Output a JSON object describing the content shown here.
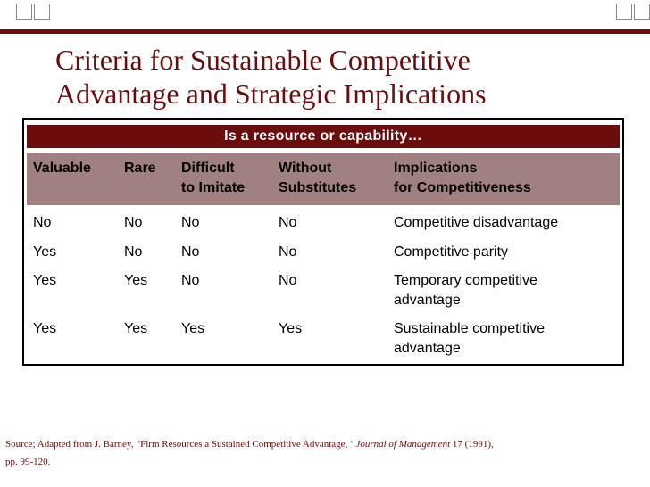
{
  "title": {
    "line1": "Criteria for Sustainable Competitive",
    "line2": "Advantage and Strategic Implications"
  },
  "table": {
    "banner": "Is a resource or capability…",
    "headers": {
      "valuable": "Valuable",
      "rare": "Rare",
      "difficult": "Difficult\nto Imitate",
      "without": "Without\nSubstitutes",
      "implications": "Implications\nfor Competitiveness"
    },
    "rows": [
      {
        "valuable": "No",
        "rare": "No",
        "difficult": "No",
        "without": "No",
        "implications": "Competitive disadvantage"
      },
      {
        "valuable": "Yes",
        "rare": "No",
        "difficult": "No",
        "without": "No",
        "implications": "Competitive parity"
      },
      {
        "valuable": "Yes",
        "rare": "Yes",
        "difficult": "No",
        "without": "No",
        "implications": "Temporary competitive\nadvantage"
      },
      {
        "valuable": "Yes",
        "rare": "Yes",
        "difficult": "Yes",
        "without": "Yes",
        "implications": "Sustainable competitive\nadvantage"
      }
    ]
  },
  "source": {
    "prefix": "Source; Adapted from J. Barney, “Firm Resources a Sustained Competitive Advantage, ‘ ",
    "journal": "Journal of Management",
    "suffix": " 17 (1991), pp. 99-120."
  },
  "colors": {
    "brand": "#6b0d0d",
    "header_bg": "#a08080"
  }
}
